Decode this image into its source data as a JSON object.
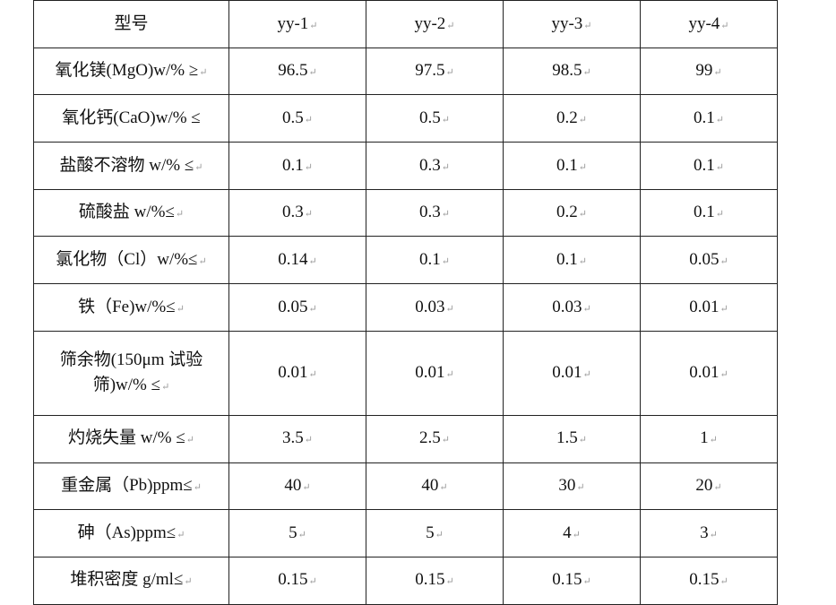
{
  "table": {
    "headers": [
      "型号",
      "yy-1",
      "yy-2",
      "yy-3",
      "yy-4"
    ],
    "rows": [
      {
        "label": "氧化镁(MgO)w/% ≥",
        "values": [
          "96.5",
          "97.5",
          "98.5",
          "99"
        ]
      },
      {
        "label": "氧化钙(CaO)w/% ≤",
        "values": [
          "0.5",
          "0.5",
          "0.2",
          "0.1"
        ]
      },
      {
        "label": "盐酸不溶物 w/% ≤",
        "values": [
          "0.1",
          "0.3",
          "0.1",
          "0.1"
        ]
      },
      {
        "label": "硫酸盐 w/%≤",
        "values": [
          "0.3",
          "0.3",
          "0.2",
          "0.1"
        ]
      },
      {
        "label": "氯化物（Cl）w/%≤",
        "values": [
          "0.14",
          "0.1",
          "0.1",
          "0.05"
        ]
      },
      {
        "label": "铁（Fe)w/%≤",
        "values": [
          "0.05",
          "0.03",
          "0.03",
          "0.01"
        ]
      },
      {
        "label": "筛余物(150μm 试验筛)w/% ≤",
        "values": [
          "0.01",
          "0.01",
          "0.01",
          "0.01"
        ]
      },
      {
        "label": "灼烧失量 w/% ≤",
        "values": [
          "3.5",
          "2.5",
          "1.5",
          "1"
        ]
      },
      {
        "label": "重金属（Pb)ppm≤",
        "values": [
          "40",
          "40",
          "30",
          "20"
        ]
      },
      {
        "label": "砷（As)ppm≤",
        "values": [
          "5",
          "5",
          "4",
          "3"
        ]
      },
      {
        "label": "堆积密度 g/ml≤",
        "values": [
          "0.15",
          "0.15",
          "0.15",
          "0.15"
        ]
      }
    ]
  }
}
